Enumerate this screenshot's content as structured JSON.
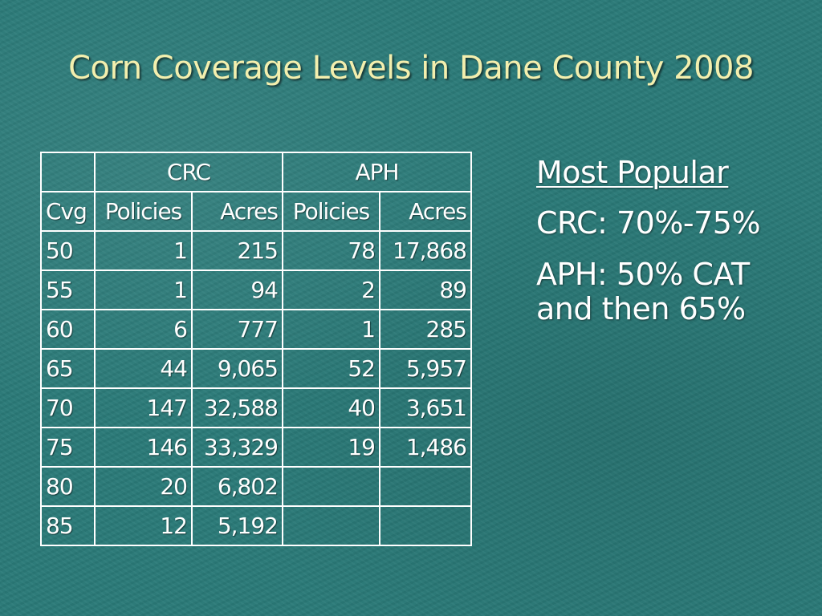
{
  "slide": {
    "title": "Corn Coverage Levels in Dane County 2008"
  },
  "table": {
    "group_headers": [
      "CRC",
      "APH"
    ],
    "column_headers": [
      "Cvg",
      "Policies",
      "Acres",
      "Policies",
      "Acres"
    ],
    "rows": [
      [
        "50",
        "1",
        "215",
        "78",
        "17,868"
      ],
      [
        "55",
        "1",
        "94",
        "2",
        "89"
      ],
      [
        "60",
        "6",
        "777",
        "1",
        "285"
      ],
      [
        "65",
        "44",
        "9,065",
        "52",
        "5,957"
      ],
      [
        "70",
        "147",
        "32,588",
        "40",
        "3,651"
      ],
      [
        "75",
        "146",
        "33,329",
        "19",
        "1,486"
      ],
      [
        "80",
        "20",
        "6,802",
        "",
        ""
      ],
      [
        "85",
        "12",
        "5,192",
        "",
        ""
      ]
    ]
  },
  "notes": {
    "heading": "Most Popular",
    "crc": "CRC: 70%-75%",
    "aph": "APH: 50% CAT and then 65%"
  },
  "colors": {
    "background": "#2a7a78",
    "title_text": "#f3efae",
    "body_text": "#ffffff",
    "table_border": "#ffffff"
  }
}
